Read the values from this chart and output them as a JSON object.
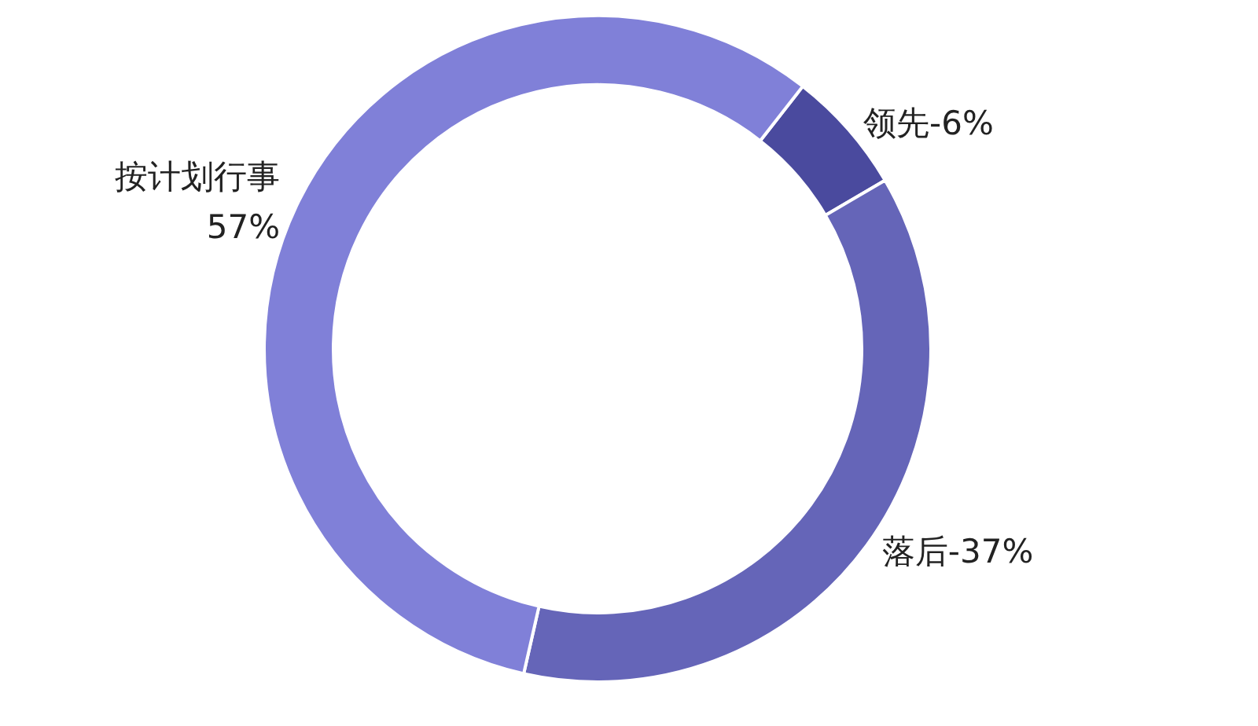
{
  "chart_data": {
    "type": "donut",
    "categories": [
      "领先",
      "落后",
      "按计划行事"
    ],
    "values": [
      6,
      37,
      57
    ],
    "colors": [
      "#4a4a9e",
      "#6565b8",
      "#8080d8"
    ],
    "value_labels": [
      "6%",
      "37%",
      "57%"
    ],
    "legend": false
  }
}
